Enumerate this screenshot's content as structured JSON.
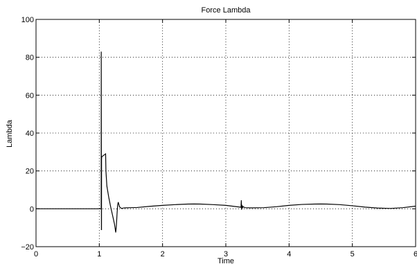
{
  "chart_data": {
    "type": "line",
    "title": "Force Lambda",
    "xlabel": "Time",
    "ylabel": "Lambda",
    "xlim": [
      0,
      6
    ],
    "ylim": [
      -20,
      100
    ],
    "xticks": [
      "0",
      "1",
      "2",
      "3",
      "4",
      "5",
      "6"
    ],
    "yticks": [
      "−20",
      "0",
      "20",
      "40",
      "60",
      "80",
      "100"
    ],
    "grid": true,
    "line_color": "#000000",
    "series": [
      {
        "x": [
          0,
          0.5,
          1.0,
          1.03,
          1.031,
          1.034,
          1.035,
          1.036,
          1.037,
          1.04,
          1.06,
          1.08,
          1.1,
          1.105,
          1.12,
          1.15,
          1.18,
          1.2,
          1.22,
          1.24,
          1.26,
          1.27,
          1.28,
          1.29,
          1.3,
          1.32,
          1.35,
          1.4,
          1.5,
          1.6,
          1.8,
          2.0,
          2.2,
          2.4,
          2.5,
          2.6,
          2.8,
          3.0,
          3.1,
          3.2,
          3.24,
          3.245,
          3.25,
          3.255,
          3.26,
          3.27,
          3.3,
          3.4,
          3.6,
          3.8,
          4.0,
          4.2,
          4.4,
          4.5,
          4.6,
          4.8,
          5.0,
          5.2,
          5.4,
          5.6,
          5.8,
          6.0
        ],
        "y": [
          0,
          0,
          0,
          0,
          83,
          -11,
          -11,
          26,
          27,
          27.5,
          28,
          28.5,
          29,
          20,
          12,
          6,
          1,
          -2,
          -5,
          -8,
          -12.5,
          -9,
          -3,
          2,
          3.5,
          1,
          0.2,
          0.5,
          0.6,
          0.7,
          1.3,
          1.8,
          2.2,
          2.5,
          2.55,
          2.5,
          2.2,
          1.8,
          1.4,
          1.0,
          0.8,
          4.5,
          -0.5,
          2,
          0.3,
          1.2,
          0.6,
          0.5,
          0.6,
          1.1,
          1.8,
          2.3,
          2.5,
          2.55,
          2.5,
          2.2,
          1.6,
          0.9,
          0.4,
          0.2,
          0.6,
          1.4
        ]
      }
    ]
  }
}
